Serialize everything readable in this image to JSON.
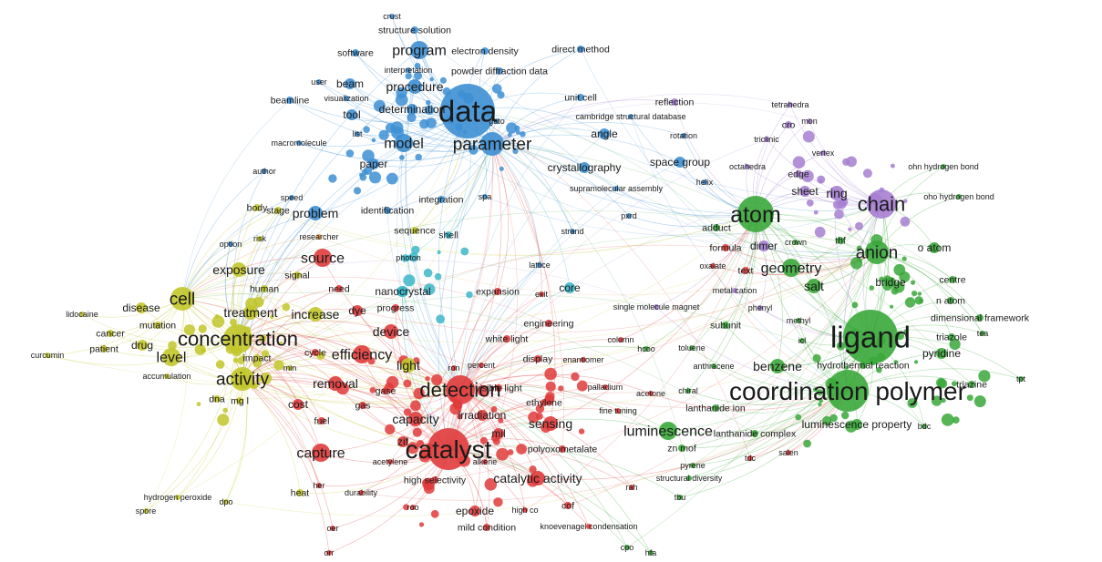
{
  "palette": {
    "blue": "#3d8fd3",
    "purple": "#a77fd1",
    "green": "#3aa83a",
    "red": "#e03b3b",
    "yellow": "#c2c62a",
    "cyan": "#3cb7c9",
    "orange": "#e59a3b"
  },
  "nodes": [
    {
      "id": "crust",
      "label": "crust",
      "cluster": "blue",
      "w": 1
    },
    {
      "id": "structure-solution",
      "label": "structure solution",
      "cluster": "blue",
      "w": 2
    },
    {
      "id": "software",
      "label": "software",
      "cluster": "blue",
      "w": 2
    },
    {
      "id": "program",
      "label": "program",
      "cluster": "blue",
      "w": 5
    },
    {
      "id": "electron-density",
      "label": "electron density",
      "cluster": "blue",
      "w": 2
    },
    {
      "id": "direct-method",
      "label": "direct method",
      "cluster": "blue",
      "w": 2
    },
    {
      "id": "interpretation",
      "label": "interpretation",
      "cluster": "blue",
      "w": 1
    },
    {
      "id": "powder-diffraction-data",
      "label": "powder diffraction data",
      "cluster": "blue",
      "w": 2
    },
    {
      "id": "user",
      "label": "user",
      "cluster": "blue",
      "w": 1
    },
    {
      "id": "beam",
      "label": "beam",
      "cluster": "blue",
      "w": 3
    },
    {
      "id": "procedure",
      "label": "procedure",
      "cluster": "blue",
      "w": 4
    },
    {
      "id": "beamline",
      "label": "beamline",
      "cluster": "blue",
      "w": 2
    },
    {
      "id": "visualization",
      "label": "visualization",
      "cluster": "blue",
      "w": 1
    },
    {
      "id": "determination",
      "label": "determination",
      "cluster": "blue",
      "w": 3
    },
    {
      "id": "data",
      "label": "data",
      "cluster": "blue",
      "w": 10
    },
    {
      "id": "unit-cell",
      "label": "unit cell",
      "cluster": "blue",
      "w": 2
    },
    {
      "id": "tool",
      "label": "tool",
      "cluster": "blue",
      "w": 3
    },
    {
      "id": "gato",
      "label": "gato",
      "cluster": "blue",
      "w": 1
    },
    {
      "id": "cambridge-structural-database",
      "label": "cambridge structural database",
      "cluster": "blue",
      "w": 1
    },
    {
      "id": "list",
      "label": "list",
      "cluster": "blue",
      "w": 1
    },
    {
      "id": "angle",
      "label": "angle",
      "cluster": "blue",
      "w": 3
    },
    {
      "id": "rotation",
      "label": "rotation",
      "cluster": "blue",
      "w": 1
    },
    {
      "id": "macromolecule",
      "label": "macromolecule",
      "cluster": "blue",
      "w": 1
    },
    {
      "id": "model",
      "label": "model",
      "cluster": "blue",
      "w": 5
    },
    {
      "id": "parameter",
      "label": "parameter",
      "cluster": "blue",
      "w": 6
    },
    {
      "id": "paper",
      "label": "paper",
      "cluster": "blue",
      "w": 3
    },
    {
      "id": "crystallography",
      "label": "crystallography",
      "cluster": "blue",
      "w": 3
    },
    {
      "id": "space-group",
      "label": "space group",
      "cluster": "blue",
      "w": 3
    },
    {
      "id": "author",
      "label": "author",
      "cluster": "blue",
      "w": 1
    },
    {
      "id": "helix",
      "label": "helix",
      "cluster": "blue",
      "w": 1
    },
    {
      "id": "supramolecular-assembly",
      "label": "supramolecular assembly",
      "cluster": "blue",
      "w": 1
    },
    {
      "id": "speed",
      "label": "speed",
      "cluster": "blue",
      "w": 1
    },
    {
      "id": "integration",
      "label": "integration",
      "cluster": "blue",
      "w": 2
    },
    {
      "id": "spa",
      "label": "spa",
      "cluster": "blue",
      "w": 1
    },
    {
      "id": "body",
      "label": "body",
      "cluster": "yellow",
      "w": 2
    },
    {
      "id": "stage",
      "label": "stage",
      "cluster": "yellow",
      "w": 2
    },
    {
      "id": "problem",
      "label": "problem",
      "cluster": "blue",
      "w": 4
    },
    {
      "id": "identification",
      "label": "identification",
      "cluster": "blue",
      "w": 2
    },
    {
      "id": "pxrd",
      "label": "pxrd",
      "cluster": "blue",
      "w": 1
    },
    {
      "id": "sequence",
      "label": "sequence",
      "cluster": "yellow",
      "w": 2
    },
    {
      "id": "shell",
      "label": "shell",
      "cluster": "cyan",
      "w": 2
    },
    {
      "id": "strand",
      "label": "strand",
      "cluster": "blue",
      "w": 1
    },
    {
      "id": "option",
      "label": "option",
      "cluster": "blue",
      "w": 1
    },
    {
      "id": "risk",
      "label": "risk",
      "cluster": "yellow",
      "w": 1
    },
    {
      "id": "researcher",
      "label": "researcher",
      "cluster": "orange",
      "w": 1
    },
    {
      "id": "photon",
      "label": "photon",
      "cluster": "cyan",
      "w": 1
    },
    {
      "id": "source",
      "label": "source",
      "cluster": "red",
      "w": 5
    },
    {
      "id": "exposure",
      "label": "exposure",
      "cluster": "yellow",
      "w": 4
    },
    {
      "id": "signal",
      "label": "signal",
      "cluster": "yellow",
      "w": 2
    },
    {
      "id": "lattice",
      "label": "lattice",
      "cluster": "blue",
      "w": 1
    },
    {
      "id": "nanocrystal",
      "label": "nanocrystal",
      "cluster": "cyan",
      "w": 3
    },
    {
      "id": "need",
      "label": "need",
      "cluster": "red",
      "w": 2
    },
    {
      "id": "expansion",
      "label": "expansion",
      "cluster": "red",
      "w": 2
    },
    {
      "id": "core",
      "label": "core",
      "cluster": "cyan",
      "w": 3
    },
    {
      "id": "exit",
      "label": "exit",
      "cluster": "red",
      "w": 1
    },
    {
      "id": "lidocaine",
      "label": "lidocaine",
      "cluster": "yellow",
      "w": 1
    },
    {
      "id": "disease",
      "label": "disease",
      "cluster": "yellow",
      "w": 3
    },
    {
      "id": "cell",
      "label": "cell",
      "cluster": "yellow",
      "w": 6
    },
    {
      "id": "human",
      "label": "human",
      "cluster": "yellow",
      "w": 2
    },
    {
      "id": "treatment",
      "label": "treatment",
      "cluster": "yellow",
      "w": 4
    },
    {
      "id": "increase",
      "label": "increase",
      "cluster": "yellow",
      "w": 4
    },
    {
      "id": "dye",
      "label": "dye",
      "cluster": "red",
      "w": 3
    },
    {
      "id": "progress",
      "label": "progress",
      "cluster": "red",
      "w": 2
    },
    {
      "id": "single-molecule-magnet",
      "label": "single molecule magnet",
      "cluster": "purple",
      "w": 1
    },
    {
      "id": "mutation",
      "label": "mutation",
      "cluster": "yellow",
      "w": 2
    },
    {
      "id": "cancer",
      "label": "cancer",
      "cluster": "yellow",
      "w": 2
    },
    {
      "id": "patient",
      "label": "patient",
      "cluster": "yellow",
      "w": 2
    },
    {
      "id": "drug",
      "label": "drug",
      "cluster": "yellow",
      "w": 3
    },
    {
      "id": "concentration",
      "label": "concentration",
      "cluster": "yellow",
      "w": 7
    },
    {
      "id": "device",
      "label": "device",
      "cluster": "red",
      "w": 4
    },
    {
      "id": "engineering",
      "label": "engineering",
      "cluster": "red",
      "w": 2
    },
    {
      "id": "curcumin",
      "label": "curcumin",
      "cluster": "yellow",
      "w": 1
    },
    {
      "id": "level",
      "label": "level",
      "cluster": "yellow",
      "w": 5
    },
    {
      "id": "impact",
      "label": "impact",
      "cluster": "yellow",
      "w": 2
    },
    {
      "id": "cycle",
      "label": "cycle",
      "cluster": "red",
      "w": 2
    },
    {
      "id": "efficiency",
      "label": "efficiency",
      "cluster": "red",
      "w": 5
    },
    {
      "id": "white-light",
      "label": "white light",
      "cluster": "red",
      "w": 2
    },
    {
      "id": "column",
      "label": "column",
      "cluster": "red",
      "w": 1
    },
    {
      "id": "display",
      "label": "display",
      "cluster": "red",
      "w": 2
    },
    {
      "id": "enantiomer",
      "label": "enantiomer",
      "cluster": "red",
      "w": 1
    },
    {
      "id": "accumulation",
      "label": "accumulation",
      "cluster": "yellow",
      "w": 1
    },
    {
      "id": "min",
      "label": "min",
      "cluster": "yellow",
      "w": 1
    },
    {
      "id": "activity",
      "label": "activity",
      "cluster": "yellow",
      "w": 6
    },
    {
      "id": "light",
      "label": "light",
      "cluster": "yellow",
      "w": 4
    },
    {
      "id": "ron",
      "label": "ron",
      "cluster": "red",
      "w": 1
    },
    {
      "id": "percent",
      "label": "percent",
      "cluster": "red",
      "w": 1
    },
    {
      "id": "removal",
      "label": "removal",
      "cluster": "red",
      "w": 4
    },
    {
      "id": "detection",
      "label": "detection",
      "cluster": "red",
      "w": 7
    },
    {
      "id": "visible-light",
      "label": "visible light",
      "cluster": "red",
      "w": 2
    },
    {
      "id": "palladium",
      "label": "palladium",
      "cluster": "red",
      "w": 1
    },
    {
      "id": "acetone",
      "label": "acetone",
      "cluster": "red",
      "w": 1
    },
    {
      "id": "dna",
      "label": "dna",
      "cluster": "yellow",
      "w": 2
    },
    {
      "id": "mg-l",
      "label": "mg l",
      "cluster": "yellow",
      "w": 2
    },
    {
      "id": "cost",
      "label": "cost",
      "cluster": "red",
      "w": 3
    },
    {
      "id": "gas",
      "label": "gas",
      "cluster": "red",
      "w": 2
    },
    {
      "id": "gase",
      "label": "gase",
      "cluster": "red",
      "w": 2
    },
    {
      "id": "ethylene",
      "label": "ethylene",
      "cluster": "red",
      "w": 2
    },
    {
      "id": "capacity",
      "label": "capacity",
      "cluster": "red",
      "w": 4
    },
    {
      "id": "irradiation",
      "label": "irradiation",
      "cluster": "red",
      "w": 3
    },
    {
      "id": "sensing",
      "label": "sensing",
      "cluster": "red",
      "w": 4
    },
    {
      "id": "fine-tuning",
      "label": "fine tuning",
      "cluster": "red",
      "w": 1
    },
    {
      "id": "fuel",
      "label": "fuel",
      "cluster": "red",
      "w": 2
    },
    {
      "id": "mil",
      "label": "mil",
      "cluster": "red",
      "w": 3
    },
    {
      "id": "zif",
      "label": "zif",
      "cluster": "red",
      "w": 3
    },
    {
      "id": "catalyst",
      "label": "catalyst",
      "cluster": "red",
      "w": 9
    },
    {
      "id": "polyoxometalate",
      "label": "polyoxometalate",
      "cluster": "red",
      "w": 2
    },
    {
      "id": "capture",
      "label": "capture",
      "cluster": "red",
      "w": 5
    },
    {
      "id": "acetylene",
      "label": "acetylene",
      "cluster": "red",
      "w": 1
    },
    {
      "id": "alkene",
      "label": "alkene",
      "cluster": "red",
      "w": 1
    },
    {
      "id": "high-selectivity",
      "label": "high selectivity",
      "cluster": "red",
      "w": 2
    },
    {
      "id": "catalytic-activity",
      "label": "catalytic activity",
      "cluster": "red",
      "w": 4
    },
    {
      "id": "rah",
      "label": "rah",
      "cluster": "red",
      "w": 1
    },
    {
      "id": "her",
      "label": "her",
      "cluster": "red",
      "w": 1
    },
    {
      "id": "durability",
      "label": "durability",
      "cluster": "red",
      "w": 1
    },
    {
      "id": "hydrogen-peroxide",
      "label": "hydrogen peroxide",
      "cluster": "yellow",
      "w": 1
    },
    {
      "id": "heat",
      "label": "heat",
      "cluster": "yellow",
      "w": 2
    },
    {
      "id": "dpo",
      "label": "dpo",
      "cluster": "yellow",
      "w": 1
    },
    {
      "id": "spore",
      "label": "spore",
      "cluster": "yellow",
      "w": 1
    },
    {
      "id": "roo",
      "label": "roo",
      "cluster": "red",
      "w": 1
    },
    {
      "id": "epoxide",
      "label": "epoxide",
      "cluster": "red",
      "w": 3
    },
    {
      "id": "high-co",
      "label": "high co",
      "cluster": "red",
      "w": 1
    },
    {
      "id": "cof",
      "label": "cof",
      "cluster": "red",
      "w": 2
    },
    {
      "id": "mild-condition",
      "label": "mild condition",
      "cluster": "red",
      "w": 2
    },
    {
      "id": "knoevenagel-condensation",
      "label": "knoevenagel condensation",
      "cluster": "red",
      "w": 1
    },
    {
      "id": "oer",
      "label": "oer",
      "cluster": "red",
      "w": 1
    },
    {
      "id": "orr",
      "label": "orr",
      "cluster": "red",
      "w": 1
    },
    {
      "id": "reflection",
      "label": "reflection",
      "cluster": "purple",
      "w": 2
    },
    {
      "id": "tetrahedra",
      "label": "tetrahedra",
      "cluster": "purple",
      "w": 1
    },
    {
      "id": "cro",
      "label": "cro",
      "cluster": "purple",
      "w": 2
    },
    {
      "id": "mon",
      "label": "mon",
      "cluster": "purple",
      "w": 1
    },
    {
      "id": "triclinic",
      "label": "triclinic",
      "cluster": "purple",
      "w": 1
    },
    {
      "id": "vertex",
      "label": "vertex",
      "cluster": "purple",
      "w": 1
    },
    {
      "id": "octahedra",
      "label": "octahedra",
      "cluster": "purple",
      "w": 1
    },
    {
      "id": "edge",
      "label": "edge",
      "cluster": "purple",
      "w": 2
    },
    {
      "id": "sheet",
      "label": "sheet",
      "cluster": "purple",
      "w": 3
    },
    {
      "id": "ring",
      "label": "ring",
      "cluster": "purple",
      "w": 4
    },
    {
      "id": "chain",
      "label": "chain",
      "cluster": "purple",
      "w": 7
    },
    {
      "id": "ohn-hydrogen-bond",
      "label": "ohn hydrogen bond",
      "cluster": "green",
      "w": 1
    },
    {
      "id": "oho-hydrogen-bond",
      "label": "oho hydrogen bond",
      "cluster": "green",
      "w": 1
    },
    {
      "id": "atom",
      "label": "atom",
      "cluster": "green",
      "w": 8
    },
    {
      "id": "adduct",
      "label": "adduct",
      "cluster": "green",
      "w": 2
    },
    {
      "id": "formula",
      "label": "formula",
      "cluster": "red",
      "w": 2
    },
    {
      "id": "dimer",
      "label": "dimer",
      "cluster": "purple",
      "w": 3
    },
    {
      "id": "crown",
      "label": "crown",
      "cluster": "green",
      "w": 1
    },
    {
      "id": "thf",
      "label": "thf",
      "cluster": "green",
      "w": 2
    },
    {
      "id": "anion",
      "label": "anion",
      "cluster": "green",
      "w": 6
    },
    {
      "id": "o-atom",
      "label": "o atom",
      "cluster": "green",
      "w": 3
    },
    {
      "id": "oxalate",
      "label": "oxalate",
      "cluster": "red",
      "w": 1
    },
    {
      "id": "text",
      "label": "text",
      "cluster": "red",
      "w": 2
    },
    {
      "id": "geometry",
      "label": "geometry",
      "cluster": "green",
      "w": 5
    },
    {
      "id": "bridge",
      "label": "bridge",
      "cluster": "green",
      "w": 3
    },
    {
      "id": "centre",
      "label": "centre",
      "cluster": "green",
      "w": 2
    },
    {
      "id": "metal-cation",
      "label": "metal cation",
      "cluster": "purple",
      "w": 1
    },
    {
      "id": "salt",
      "label": "salt",
      "cluster": "green",
      "w": 4
    },
    {
      "id": "n-atom",
      "label": "n atom",
      "cluster": "green",
      "w": 2
    },
    {
      "id": "phenyl",
      "label": "phenyl",
      "cluster": "purple",
      "w": 1
    },
    {
      "id": "dimensional-framework",
      "label": "dimensional framework",
      "cluster": "green",
      "w": 2
    },
    {
      "id": "methyl",
      "label": "methyl",
      "cluster": "green",
      "w": 1
    },
    {
      "id": "subunit",
      "label": "subunit",
      "cluster": "green",
      "w": 2
    },
    {
      "id": "ligand",
      "label": "ligand",
      "cluster": "green",
      "w": 10
    },
    {
      "id": "tea",
      "label": "tea",
      "cluster": "green",
      "w": 1
    },
    {
      "id": "icl",
      "label": "icl",
      "cluster": "green",
      "w": 1
    },
    {
      "id": "triazole",
      "label": "triazole",
      "cluster": "green",
      "w": 2
    },
    {
      "id": "hcoo",
      "label": "hcoo",
      "cluster": "green",
      "w": 1
    },
    {
      "id": "toluene",
      "label": "toluene",
      "cluster": "green",
      "w": 1
    },
    {
      "id": "pyridine",
      "label": "pyridine",
      "cluster": "green",
      "w": 3
    },
    {
      "id": "benzene",
      "label": "benzene",
      "cluster": "green",
      "w": 4
    },
    {
      "id": "anthracene",
      "label": "anthracene",
      "cluster": "green",
      "w": 1
    },
    {
      "id": "hydrothermal-reaction",
      "label": "hydrothermal reaction",
      "cluster": "green",
      "w": 2
    },
    {
      "id": "chiral",
      "label": "chiral",
      "cluster": "green",
      "w": 1
    },
    {
      "id": "triazine",
      "label": "triazine",
      "cluster": "green",
      "w": 2
    },
    {
      "id": "tpt",
      "label": "tpt",
      "cluster": "green",
      "w": 1
    },
    {
      "id": "coordination-polymer",
      "label": "coordination polymer",
      "cluster": "green",
      "w": 9
    },
    {
      "id": "lanthanide-ion",
      "label": "lanthanide ion",
      "cluster": "green",
      "w": 2
    },
    {
      "id": "luminescence",
      "label": "luminescence",
      "cluster": "green",
      "w": 5
    },
    {
      "id": "luminescence-property",
      "label": "luminescence property",
      "cluster": "green",
      "w": 3
    },
    {
      "id": "bdc",
      "label": "bdc",
      "cluster": "green",
      "w": 1
    },
    {
      "id": "lanthanide-complex",
      "label": "lanthanide complex",
      "cluster": "green",
      "w": 2
    },
    {
      "id": "zn-mof",
      "label": "zn mof",
      "cluster": "green",
      "w": 2
    },
    {
      "id": "tdc",
      "label": "tdc",
      "cluster": "red",
      "w": 1
    },
    {
      "id": "pyrene",
      "label": "pyrene",
      "cluster": "green",
      "w": 1
    },
    {
      "id": "salen",
      "label": "salen",
      "cluster": "red",
      "w": 1
    },
    {
      "id": "structural-diversity",
      "label": "structural diversity",
      "cluster": "green",
      "w": 1
    },
    {
      "id": "tbu",
      "label": "tbu",
      "cluster": "green",
      "w": 1
    },
    {
      "id": "cpo",
      "label": "cpo",
      "cluster": "green",
      "w": 1
    },
    {
      "id": "hfa",
      "label": "hfa",
      "cluster": "green",
      "w": 1
    }
  ]
}
